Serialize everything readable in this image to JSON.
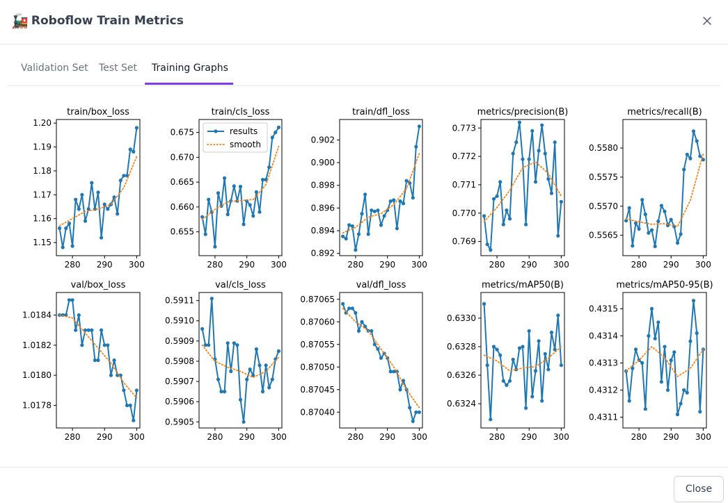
{
  "window": {
    "title": "Roboflow Train Metrics",
    "title_icon": "train-icon",
    "title_emoji": "🚂",
    "close_glyph": "×"
  },
  "tabs": [
    {
      "label": "Validation Set",
      "active": false
    },
    {
      "label": "Test Set",
      "active": false
    },
    {
      "label": "Training Graphs",
      "active": true
    }
  ],
  "footer": {
    "close_label": "Close"
  },
  "colors": {
    "accent": "#7c3aed",
    "results_line": "#1f77b4",
    "smooth_line": "#ff7f0e"
  },
  "legend": {
    "results": "results",
    "smooth": "smooth"
  },
  "chart_data": [
    {
      "type": "line",
      "title": "train/box_loss",
      "x_ticks": [
        280,
        290,
        300
      ],
      "y_ticks": [
        "1.15",
        "1.16",
        "1.17",
        "1.18",
        "1.19",
        "1.20"
      ],
      "ylim": [
        1.1445,
        1.2015
      ],
      "xlim": [
        275,
        301
      ],
      "legend": false,
      "series": [
        {
          "name": "results",
          "x": [
            276,
            277,
            278,
            279,
            280,
            281,
            282,
            283,
            284,
            285,
            286,
            287,
            288,
            289,
            290,
            291,
            292,
            293,
            294,
            295,
            296,
            297,
            298,
            299,
            300
          ],
          "values": [
            1.156,
            1.148,
            1.156,
            1.158,
            1.1485,
            1.168,
            1.164,
            1.17,
            1.159,
            1.164,
            1.175,
            1.164,
            1.171,
            1.152,
            1.166,
            1.164,
            1.166,
            1.169,
            1.162,
            1.176,
            1.178,
            1.178,
            1.189,
            1.188,
            1.198
          ]
        },
        {
          "name": "smooth",
          "x": [
            276,
            280,
            284,
            288,
            292,
            296,
            300
          ],
          "values": [
            1.157,
            1.16,
            1.163,
            1.164,
            1.166,
            1.173,
            1.186
          ]
        }
      ]
    },
    {
      "type": "line",
      "title": "train/cls_loss",
      "x_ticks": [
        280,
        290,
        300
      ],
      "y_ticks": [
        "0.655",
        "0.660",
        "0.665",
        "0.670",
        "0.675"
      ],
      "ylim": [
        0.6502,
        0.6776
      ],
      "xlim": [
        275,
        301
      ],
      "legend": true,
      "series": [
        {
          "name": "results",
          "x": [
            276,
            277,
            278,
            279,
            280,
            281,
            282,
            283,
            284,
            285,
            286,
            287,
            288,
            289,
            290,
            291,
            292,
            293,
            294,
            295,
            296,
            297,
            298,
            299,
            300
          ],
          "values": [
            0.658,
            0.6545,
            0.6615,
            0.659,
            0.652,
            0.6628,
            0.6602,
            0.6658,
            0.6585,
            0.6612,
            0.6642,
            0.6612,
            0.6641,
            0.6565,
            0.6612,
            0.6604,
            0.6582,
            0.663,
            0.659,
            0.6655,
            0.6655,
            0.668,
            0.674,
            0.675,
            0.676
          ]
        },
        {
          "name": "smooth",
          "x": [
            276,
            280,
            284,
            288,
            292,
            296,
            300
          ],
          "values": [
            0.6575,
            0.6595,
            0.661,
            0.6613,
            0.6615,
            0.6645,
            0.6722
          ]
        }
      ]
    },
    {
      "type": "line",
      "title": "train/dfl_loss",
      "x_ticks": [
        280,
        290,
        300
      ],
      "y_ticks": [
        "0.892",
        "0.894",
        "0.896",
        "0.898",
        "0.900",
        "0.902"
      ],
      "ylim": [
        0.8918,
        0.9038
      ],
      "xlim": [
        275,
        301
      ],
      "legend": false,
      "series": [
        {
          "name": "results",
          "x": [
            276,
            277,
            278,
            279,
            280,
            281,
            282,
            283,
            284,
            285,
            286,
            287,
            288,
            289,
            290,
            291,
            292,
            293,
            294,
            295,
            296,
            297,
            298,
            299,
            300
          ],
          "values": [
            0.8935,
            0.8933,
            0.8945,
            0.8944,
            0.8923,
            0.8937,
            0.8955,
            0.8972,
            0.8937,
            0.8958,
            0.8957,
            0.8958,
            0.8945,
            0.8953,
            0.8958,
            0.8966,
            0.8967,
            0.8942,
            0.8966,
            0.8964,
            0.8984,
            0.8982,
            0.8969,
            0.9014,
            0.9032
          ]
        },
        {
          "name": "smooth",
          "x": [
            276,
            280,
            284,
            288,
            292,
            296,
            300
          ],
          "values": [
            0.8938,
            0.8943,
            0.8952,
            0.8955,
            0.8963,
            0.8977,
            0.9008
          ]
        }
      ]
    },
    {
      "type": "line",
      "title": "metrics/precision(B)",
      "x_ticks": [
        280,
        290,
        300
      ],
      "y_ticks": [
        "0.769",
        "0.770",
        "0.771",
        "0.772",
        "0.773"
      ],
      "ylim": [
        0.7685,
        0.7733
      ],
      "xlim": [
        275,
        301
      ],
      "legend": false,
      "series": [
        {
          "name": "results",
          "x": [
            276,
            277,
            278,
            279,
            280,
            281,
            282,
            283,
            284,
            285,
            286,
            287,
            288,
            289,
            290,
            291,
            292,
            293,
            294,
            295,
            296,
            297,
            298,
            299,
            300
          ],
          "values": [
            0.7699,
            0.7689,
            0.7687,
            0.7705,
            0.7706,
            0.7711,
            0.7696,
            0.7701,
            0.7698,
            0.7721,
            0.7725,
            0.7732,
            0.7719,
            0.7696,
            0.7719,
            0.7729,
            0.7711,
            0.7722,
            0.7731,
            0.7721,
            0.7712,
            0.7707,
            0.7725,
            0.7692,
            0.7704
          ]
        },
        {
          "name": "smooth",
          "x": [
            276,
            280,
            284,
            288,
            292,
            296,
            300
          ],
          "values": [
            0.7697,
            0.7702,
            0.7708,
            0.7716,
            0.7718,
            0.7714,
            0.7706
          ]
        }
      ]
    },
    {
      "type": "line",
      "title": "metrics/recall(B)",
      "x_ticks": [
        280,
        290,
        300
      ],
      "y_ticks": [
        "0.5565",
        "0.5570",
        "0.5575",
        "0.5580"
      ],
      "ylim": [
        0.55615,
        0.55849
      ],
      "xlim": [
        275,
        301
      ],
      "legend": false,
      "series": [
        {
          "name": "results",
          "x": [
            276,
            277,
            278,
            279,
            280,
            281,
            282,
            283,
            284,
            285,
            286,
            287,
            288,
            289,
            290,
            291,
            292,
            293,
            294,
            295,
            296,
            297,
            298,
            299,
            300
          ],
          "values": [
            0.55675,
            0.55697,
            0.55632,
            0.55671,
            0.55661,
            0.55711,
            0.55686,
            0.55654,
            0.55659,
            0.55631,
            0.55674,
            0.55701,
            0.55691,
            0.55667,
            0.55677,
            0.55665,
            0.55637,
            0.55652,
            0.55763,
            0.55789,
            0.55782,
            0.55829,
            0.55812,
            0.55786,
            0.5578
          ]
        },
        {
          "name": "smooth",
          "x": [
            276,
            280,
            284,
            288,
            292,
            296,
            300
          ],
          "values": [
            0.55678,
            0.55673,
            0.55669,
            0.5567,
            0.55665,
            0.5571,
            0.5579
          ]
        }
      ]
    },
    {
      "type": "line",
      "title": "val/box_loss",
      "x_ticks": [
        280,
        290,
        300
      ],
      "y_ticks": [
        "1.0178",
        "1.0180",
        "1.0182",
        "1.0184"
      ],
      "ylim": [
        1.01765,
        1.01855
      ],
      "xlim": [
        275,
        301
      ],
      "legend": false,
      "series": [
        {
          "name": "results",
          "x": [
            276,
            277,
            278,
            279,
            280,
            281,
            282,
            283,
            284,
            285,
            286,
            287,
            288,
            289,
            290,
            291,
            292,
            293,
            294,
            295,
            296,
            297,
            298,
            299,
            300
          ],
          "values": [
            1.0184,
            1.0184,
            1.0184,
            1.0185,
            1.0185,
            1.0183,
            1.0184,
            1.0182,
            1.0183,
            1.0183,
            1.0183,
            1.0181,
            1.0181,
            1.0183,
            1.0182,
            1.0182,
            1.018,
            1.0181,
            1.018,
            1.018,
            1.0179,
            1.0178,
            1.0178,
            1.0177,
            1.0179
          ]
        },
        {
          "name": "smooth",
          "x": [
            276,
            280,
            284,
            288,
            292,
            296,
            300
          ],
          "values": [
            1.0184,
            1.01838,
            1.01828,
            1.01818,
            1.01808,
            1.01795,
            1.01785
          ]
        }
      ]
    },
    {
      "type": "line",
      "title": "val/cls_loss",
      "x_ticks": [
        280,
        290,
        300
      ],
      "y_ticks": [
        "0.5905",
        "0.5906",
        "0.5907",
        "0.5908",
        "0.5909",
        "0.5910",
        "0.5911"
      ],
      "ylim": [
        0.59047,
        0.59114
      ],
      "xlim": [
        275,
        301
      ],
      "legend": false,
      "series": [
        {
          "name": "results",
          "x": [
            276,
            277,
            278,
            279,
            280,
            281,
            282,
            283,
            284,
            285,
            286,
            287,
            288,
            289,
            290,
            291,
            292,
            293,
            294,
            295,
            296,
            297,
            298,
            299,
            300
          ],
          "values": [
            0.59096,
            0.59088,
            0.59088,
            0.59111,
            0.59081,
            0.59071,
            0.59065,
            0.59065,
            0.59089,
            0.59075,
            0.59089,
            0.59088,
            0.59061,
            0.5905,
            0.59071,
            0.59076,
            0.59073,
            0.59086,
            0.59078,
            0.59065,
            0.59078,
            0.59067,
            0.59071,
            0.59081,
            0.59085
          ]
        },
        {
          "name": "smooth",
          "x": [
            276,
            280,
            284,
            288,
            292,
            296,
            300
          ],
          "values": [
            0.59088,
            0.5908,
            0.59077,
            0.59075,
            0.59072,
            0.59075,
            0.59082
          ]
        }
      ]
    },
    {
      "type": "line",
      "title": "val/dfl_loss",
      "x_ticks": [
        280,
        290,
        300
      ],
      "y_ticks": [
        "0.87040",
        "0.87045",
        "0.87050",
        "0.87055",
        "0.87060",
        "0.87065"
      ],
      "ylim": [
        0.870365,
        0.870665
      ],
      "xlim": [
        275,
        301
      ],
      "legend": false,
      "series": [
        {
          "name": "results",
          "x": [
            276,
            277,
            278,
            279,
            280,
            281,
            282,
            283,
            284,
            285,
            286,
            287,
            288,
            289,
            290,
            291,
            292,
            293,
            294,
            295,
            296,
            297,
            298,
            299,
            300
          ],
          "values": [
            0.87064,
            0.87062,
            0.87063,
            0.87063,
            0.87062,
            0.87058,
            0.8706,
            0.87059,
            0.87058,
            0.87058,
            0.87055,
            0.87054,
            0.87052,
            0.87053,
            0.87052,
            0.87049,
            0.87049,
            0.87049,
            0.87045,
            0.87047,
            0.87045,
            0.87041,
            0.87038,
            0.8704,
            0.8704
          ]
        },
        {
          "name": "smooth",
          "x": [
            276,
            280,
            284,
            288,
            292,
            296,
            300
          ],
          "values": [
            0.87063,
            0.8706,
            0.87058,
            0.87054,
            0.8705,
            0.87045,
            0.87041
          ]
        }
      ]
    },
    {
      "type": "line",
      "title": "metrics/mAP50(B)",
      "x_ticks": [
        280,
        290,
        300
      ],
      "y_ticks": [
        "0.6324",
        "0.6326",
        "0.6328",
        "0.6330"
      ],
      "ylim": [
        0.63223,
        0.63318
      ],
      "xlim": [
        275,
        301
      ],
      "legend": false,
      "series": [
        {
          "name": "results",
          "x": [
            276,
            277,
            278,
            279,
            280,
            281,
            282,
            283,
            284,
            285,
            286,
            287,
            288,
            289,
            290,
            291,
            292,
            293,
            294,
            295,
            296,
            297,
            298,
            299,
            300
          ],
          "values": [
            0.6331,
            0.63267,
            0.63229,
            0.6328,
            0.63278,
            0.63274,
            0.63256,
            0.63253,
            0.63256,
            0.63271,
            0.63264,
            0.63279,
            0.6328,
            0.63237,
            0.63291,
            0.63245,
            0.63263,
            0.63284,
            0.63242,
            0.63275,
            0.63264,
            0.6329,
            0.63278,
            0.63302,
            0.63267
          ]
        },
        {
          "name": "smooth",
          "x": [
            276,
            280,
            284,
            288,
            292,
            296,
            300
          ],
          "values": [
            0.63274,
            0.6327,
            0.63263,
            0.63265,
            0.63266,
            0.63272,
            0.6328
          ]
        }
      ]
    },
    {
      "type": "line",
      "title": "metrics/mAP50-95(B)",
      "x_ticks": [
        280,
        290,
        300
      ],
      "y_ticks": [
        "0.4311",
        "0.4312",
        "0.4313",
        "0.4314",
        "0.4315"
      ],
      "ylim": [
        0.43106,
        0.43156
      ],
      "xlim": [
        275,
        301
      ],
      "legend": false,
      "series": [
        {
          "name": "results",
          "x": [
            276,
            277,
            278,
            279,
            280,
            281,
            282,
            283,
            284,
            285,
            286,
            287,
            288,
            289,
            290,
            291,
            292,
            293,
            294,
            295,
            296,
            297,
            298,
            299,
            300
          ],
          "values": [
            0.43127,
            0.43116,
            0.43128,
            0.43135,
            0.43131,
            0.4313,
            0.43113,
            0.4314,
            0.4315,
            0.43139,
            0.43145,
            0.43123,
            0.43136,
            0.4312,
            0.43131,
            0.43134,
            0.43111,
            0.43115,
            0.4312,
            0.43119,
            0.43138,
            0.43153,
            0.43141,
            0.43112,
            0.43135
          ]
        },
        {
          "name": "smooth",
          "x": [
            276,
            280,
            284,
            288,
            292,
            296,
            300
          ],
          "values": [
            0.43127,
            0.43131,
            0.43136,
            0.43132,
            0.43125,
            0.43128,
            0.43135
          ]
        }
      ]
    }
  ]
}
